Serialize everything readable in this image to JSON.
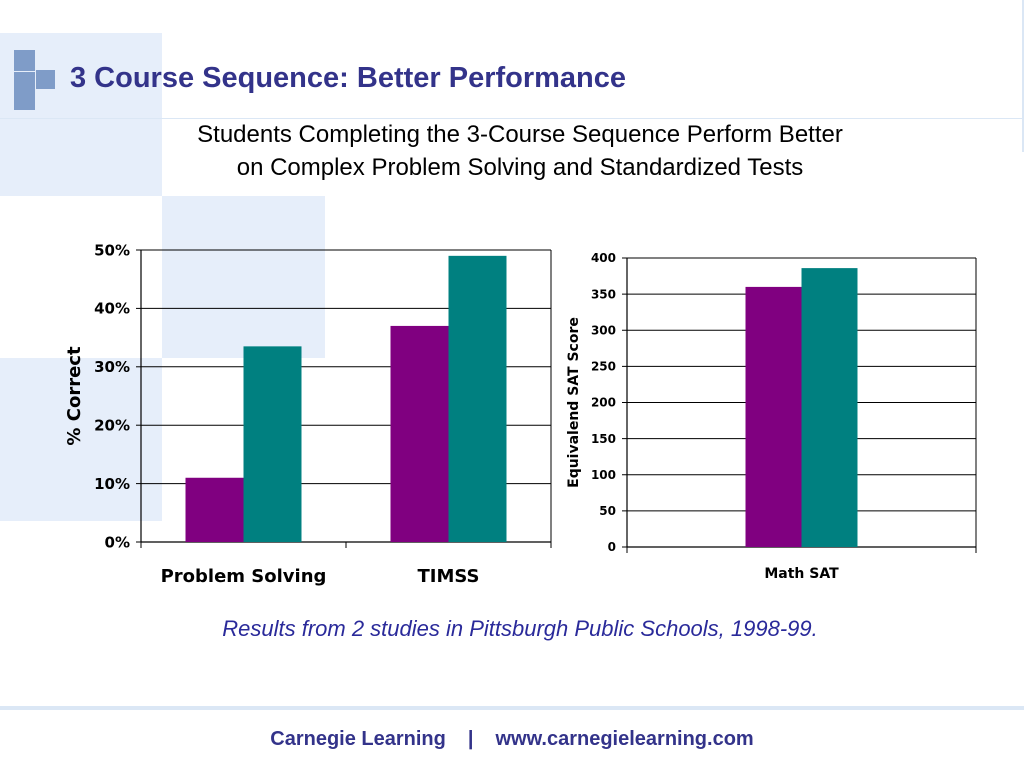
{
  "slide": {
    "title": "3 Course Sequence: Better Performance",
    "subtitle_line1": "Students Completing the 3-Course Sequence Perform Better",
    "subtitle_line2": "on Complex Problem Solving and Standardized Tests",
    "caption": "Results from 2 studies in Pittsburgh Public Schools, 1998-99.",
    "footer_company": "Carnegie Learning",
    "footer_separator": "|",
    "footer_url": "www.carnegielearning.com"
  },
  "colors": {
    "title": "#33338a",
    "caption": "#2a2a9a",
    "series_purple": "#800080",
    "series_teal": "#008080",
    "decoration": "#e6eefa",
    "logo": "#7f9cc8"
  },
  "chart_data": [
    {
      "type": "bar",
      "categories": [
        "Problem Solving",
        "TIMSS"
      ],
      "series": [
        {
          "values": [
            11,
            37
          ],
          "color": "#800080"
        },
        {
          "values": [
            33.5,
            49
          ],
          "color": "#008080"
        }
      ],
      "ylabel": "% Correct",
      "xlabel": "",
      "ylim": [
        0,
        50
      ],
      "yticks": [
        "0%",
        "10%",
        "20%",
        "30%",
        "40%",
        "50%"
      ],
      "grid": true,
      "legend": "none"
    },
    {
      "type": "bar",
      "categories": [
        "Math SAT"
      ],
      "series": [
        {
          "values": [
            360
          ],
          "color": "#800080"
        },
        {
          "values": [
            386
          ],
          "color": "#008080"
        }
      ],
      "ylabel": "Equivalend SAT Score",
      "xlabel": "",
      "ylim": [
        0,
        400
      ],
      "yticks": [
        "0",
        "50",
        "100",
        "150",
        "200",
        "250",
        "300",
        "350",
        "400"
      ],
      "grid": true,
      "legend": "none"
    }
  ]
}
